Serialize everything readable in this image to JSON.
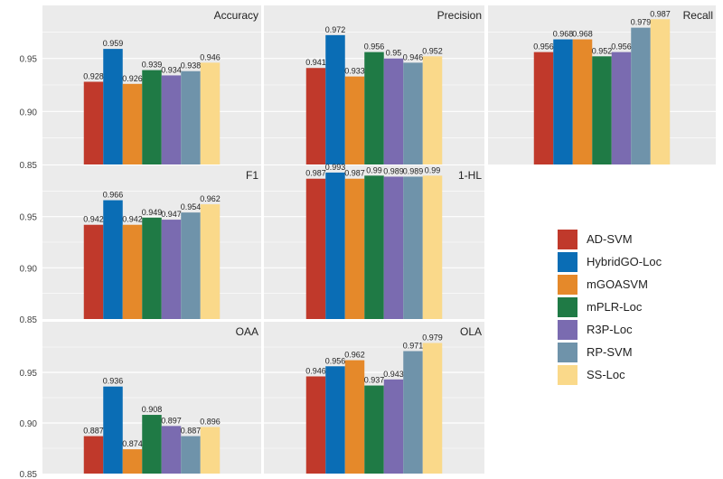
{
  "colors": [
    "#c0392b",
    "#0a6db5",
    "#e5892a",
    "#1f7a45",
    "#7a6bb0",
    "#6f93aa",
    "#fad98a"
  ],
  "legend": [
    "AD-SVM",
    "HybridGO-Loc",
    "mGOASVM",
    "mPLR-Loc",
    "R3P-Loc",
    "RP-SVM",
    "SS-Loc"
  ],
  "chart_data": [
    {
      "type": "bar",
      "title": "Accuracy",
      "categories": [
        "AD-SVM",
        "HybridGO-Loc",
        "mGOASVM",
        "mPLR-Loc",
        "R3P-Loc",
        "RP-SVM",
        "SS-Loc"
      ],
      "values": [
        0.928,
        0.959,
        0.926,
        0.939,
        0.934,
        0.938,
        0.946
      ],
      "ylim": [
        0.85,
        1.0
      ],
      "yticks": [
        "0.85",
        "0.90",
        "0.95"
      ]
    },
    {
      "type": "bar",
      "title": "Precision",
      "categories": [
        "AD-SVM",
        "HybridGO-Loc",
        "mGOASVM",
        "mPLR-Loc",
        "R3P-Loc",
        "RP-SVM",
        "SS-Loc"
      ],
      "values": [
        0.941,
        0.972,
        0.933,
        0.956,
        0.95,
        0.946,
        0.952
      ],
      "ylim": [
        0.85,
        1.0
      ]
    },
    {
      "type": "bar",
      "title": "Recall",
      "categories": [
        "AD-SVM",
        "HybridGO-Loc",
        "mGOASVM",
        "mPLR-Loc",
        "R3P-Loc",
        "RP-SVM",
        "SS-Loc"
      ],
      "values": [
        0.956,
        0.968,
        0.968,
        0.952,
        0.956,
        0.979,
        0.987
      ],
      "ylim": [
        0.85,
        1.0
      ]
    },
    {
      "type": "bar",
      "title": "F1",
      "categories": [
        "AD-SVM",
        "HybridGO-Loc",
        "mGOASVM",
        "mPLR-Loc",
        "R3P-Loc",
        "RP-SVM",
        "SS-Loc"
      ],
      "values": [
        0.942,
        0.966,
        0.942,
        0.949,
        0.947,
        0.954,
        0.962
      ],
      "ylim": [
        0.85,
        1.0
      ],
      "yticks": [
        "0.85",
        "0.90",
        "0.95"
      ]
    },
    {
      "type": "bar",
      "title": "1-HL",
      "categories": [
        "AD-SVM",
        "HybridGO-Loc",
        "mGOASVM",
        "mPLR-Loc",
        "R3P-Loc",
        "RP-SVM",
        "SS-Loc"
      ],
      "values": [
        0.987,
        0.993,
        0.987,
        0.99,
        0.989,
        0.989,
        0.99
      ],
      "ylim": [
        0.85,
        1.0
      ]
    },
    {
      "type": "bar",
      "title": "OAA",
      "categories": [
        "AD-SVM",
        "HybridGO-Loc",
        "mGOASVM",
        "mPLR-Loc",
        "R3P-Loc",
        "RP-SVM",
        "SS-Loc"
      ],
      "values": [
        0.887,
        0.936,
        0.874,
        0.908,
        0.897,
        0.887,
        0.896
      ],
      "ylim": [
        0.85,
        1.0
      ],
      "yticks": [
        "0.85",
        "0.90",
        "0.95"
      ]
    },
    {
      "type": "bar",
      "title": "OLA",
      "categories": [
        "AD-SVM",
        "HybridGO-Loc",
        "mGOASVM",
        "mPLR-Loc",
        "R3P-Loc",
        "RP-SVM",
        "SS-Loc"
      ],
      "values": [
        0.946,
        0.956,
        0.962,
        0.937,
        0.943,
        0.971,
        0.979
      ],
      "ylim": [
        0.85,
        1.0
      ]
    }
  ]
}
